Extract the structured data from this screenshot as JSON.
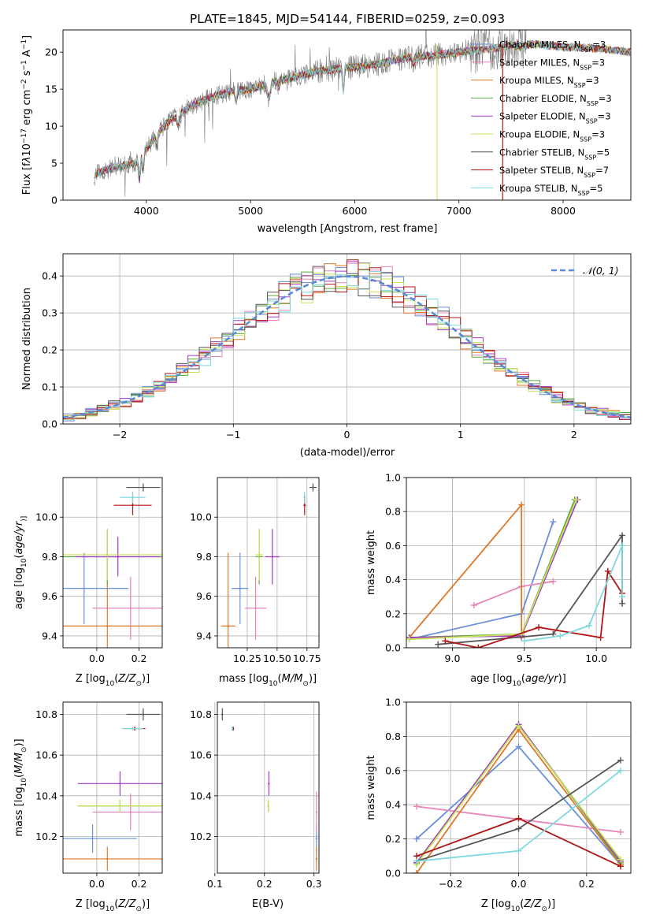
{
  "title": "PLATE=1845, MJD=54144, FIBERID=0259, z=0.093",
  "colors": {
    "chabrier_miles": "#6a8fd9",
    "salpeter_miles": "#e885b8",
    "kroupa_miles": "#e0782a",
    "chabrier_elodie": "#5fa844",
    "salpeter_elodie": "#a23cc8",
    "kroupa_elodie": "#c8e35a",
    "chabrier_stelib": "#555555",
    "salpeter_stelib": "#b01515",
    "kroupa_stelib": "#7fd8de",
    "normal": "#5b8bd6",
    "grid": "#b0b0b0"
  },
  "chart_data": [
    {
      "type": "line",
      "id": "spectrum",
      "title": "PLATE=1845, MJD=54144, FIBERID=0259, z=0.093",
      "xlabel": "wavelength [Angstrom, rest frame]",
      "ylabel_parts": [
        "Flux [f",
        "λ",
        "10",
        "−17",
        " erg cm",
        "−2",
        " s",
        "−1",
        " A",
        "−1",
        "]"
      ],
      "xlim": [
        3200,
        8650
      ],
      "ylim": [
        0,
        23
      ],
      "xticks": [
        4000,
        5000,
        6000,
        7000,
        8000
      ],
      "yticks": [
        0,
        5,
        10,
        15,
        20
      ],
      "grid": false,
      "legend_position": "top-right",
      "series": [
        {
          "name": "Chabrier MILES",
          "nssp": "3"
        },
        {
          "name": "Salpeter MILES",
          "nssp": "3"
        },
        {
          "name": "Kroupa MILES",
          "nssp": "3"
        },
        {
          "name": "Chabrier ELODIE",
          "nssp": "3"
        },
        {
          "name": "Salpeter ELODIE",
          "nssp": "3"
        },
        {
          "name": "Kroupa ELODIE",
          "nssp": "3"
        },
        {
          "name": "Chabrier STELIB",
          "nssp": "5"
        },
        {
          "name": "Salpeter STELIB",
          "nssp": "7"
        },
        {
          "name": "Kroupa STELIB",
          "nssp": "5"
        }
      ],
      "continuum": [
        [
          3500,
          3.5
        ],
        [
          3700,
          4.5
        ],
        [
          3900,
          5.0
        ],
        [
          4000,
          7.0
        ],
        [
          4200,
          10.5
        ],
        [
          4400,
          12.5
        ],
        [
          4600,
          13.8
        ],
        [
          4800,
          14.6
        ],
        [
          5000,
          15.0
        ],
        [
          5200,
          16.0
        ],
        [
          5400,
          16.5
        ],
        [
          5600,
          17.3
        ],
        [
          5800,
          17.7
        ],
        [
          6000,
          18.0
        ],
        [
          6200,
          18.3
        ],
        [
          6400,
          19.0
        ],
        [
          6600,
          19.4
        ],
        [
          6800,
          19.6
        ],
        [
          7000,
          20.0
        ],
        [
          7200,
          20.3
        ],
        [
          7400,
          20.6
        ],
        [
          7600,
          21.2
        ],
        [
          7800,
          21.0
        ],
        [
          8000,
          20.7
        ],
        [
          8200,
          20.6
        ],
        [
          8400,
          20.4
        ],
        [
          8650,
          20.0
        ]
      ]
    },
    {
      "type": "line",
      "id": "residuals",
      "xlabel": "(data-model)/error",
      "ylabel": "Normed distribution",
      "xlim": [
        -2.5,
        2.5
      ],
      "ylim": [
        0,
        0.46
      ],
      "xticks": [
        -2,
        -1,
        0,
        1,
        2
      ],
      "yticks": [
        0.0,
        0.1,
        0.2,
        0.3,
        0.4
      ],
      "grid": true,
      "legend_position": "top-right",
      "legend_label": "𝒩(0, 1)",
      "bin_width": 0.1,
      "reference_curve": "normal(0,1)"
    },
    {
      "type": "scatter",
      "id": "age_vs_Z",
      "xlabel_parts": [
        "Z [log",
        "10",
        "(",
        "Z/Z",
        "⊙",
        ")]"
      ],
      "ylabel_parts": [
        "age  [log",
        "10",
        "(",
        "age/yr",
        ")]"
      ],
      "xlim": [
        -0.16,
        0.31
      ],
      "ylim": [
        9.34,
        10.2
      ],
      "xticks": [
        0.0,
        0.2
      ],
      "yticks": [
        9.4,
        9.6,
        9.8,
        10.0
      ],
      "grid": true,
      "points": [
        {
          "model": "chabrier_miles",
          "x": -0.06,
          "xerr": 0.21,
          "y": 9.64,
          "yerr": 0.18
        },
        {
          "model": "salpeter_miles",
          "x": 0.16,
          "xerr": 0.18,
          "y": 9.54,
          "yerr": 0.16
        },
        {
          "model": "kroupa_miles",
          "x": 0.05,
          "xerr": 0.26,
          "y": 9.45,
          "yerr": 0.36
        },
        {
          "model": "chabrier_elodie",
          "x": 0.05,
          "xerr": 0.26,
          "y": 9.8,
          "yerr": 0.14
        },
        {
          "model": "salpeter_elodie",
          "x": 0.1,
          "xerr": 0.2,
          "y": 9.8,
          "yerr": 0.1
        },
        {
          "model": "kroupa_elodie",
          "x": 0.05,
          "xerr": 0.26,
          "y": 9.81,
          "yerr": 0.13
        },
        {
          "model": "chabrier_stelib",
          "x": 0.22,
          "xerr": 0.08,
          "y": 10.15,
          "yerr": 0.02
        },
        {
          "model": "salpeter_stelib",
          "x": 0.17,
          "xerr": 0.09,
          "y": 10.06,
          "yerr": 0.05
        },
        {
          "model": "kroupa_stelib",
          "x": 0.17,
          "xerr": 0.06,
          "y": 10.1,
          "yerr": 0.03
        }
      ]
    },
    {
      "type": "scatter",
      "id": "age_vs_mass",
      "xlabel_parts": [
        "mass [log",
        "10",
        "(",
        "M/M",
        "⊙",
        ")]"
      ],
      "xlim": [
        10.0,
        10.85
      ],
      "ylim": [
        9.34,
        10.2
      ],
      "xticks": [
        10.25,
        10.5,
        10.75
      ],
      "xticklabels": [
        "10.25",
        "10.50",
        "10.75"
      ],
      "yticks": [
        9.4,
        9.6,
        9.8,
        10.0
      ],
      "grid": true,
      "points": [
        {
          "model": "chabrier_miles",
          "x": 10.19,
          "xerr": 0.07,
          "y": 9.64,
          "yerr": 0.18
        },
        {
          "model": "salpeter_miles",
          "x": 10.32,
          "xerr": 0.09,
          "y": 9.54,
          "yerr": 0.16
        },
        {
          "model": "kroupa_miles",
          "x": 10.09,
          "xerr": 0.06,
          "y": 9.45,
          "yerr": 0.37
        },
        {
          "model": "chabrier_elodie",
          "x": 10.35,
          "xerr": 0.03,
          "y": 9.8,
          "yerr": 0.14
        },
        {
          "model": "salpeter_elodie",
          "x": 10.46,
          "xerr": 0.06,
          "y": 9.8,
          "yerr": 0.14
        },
        {
          "model": "kroupa_elodie",
          "x": 10.35,
          "xerr": 0.03,
          "y": 9.81,
          "yerr": 0.13
        },
        {
          "model": "chabrier_stelib",
          "x": 10.8,
          "xerr": 0.03,
          "y": 10.15,
          "yerr": 0.02
        },
        {
          "model": "salpeter_stelib",
          "x": 10.73,
          "xerr": 0.01,
          "y": 10.06,
          "yerr": 0.05
        },
        {
          "model": "kroupa_stelib",
          "x": 10.73,
          "xerr": 0.01,
          "y": 10.1,
          "yerr": 0.03
        }
      ]
    },
    {
      "type": "line",
      "id": "mass_weight_vs_age",
      "xlabel_parts": [
        "age  [log",
        "10",
        "(",
        "age/yr",
        ")]"
      ],
      "ylabel": "mass weight",
      "xlim": [
        8.68,
        10.24
      ],
      "ylim": [
        0,
        1
      ],
      "xticks": [
        9.0,
        9.5,
        10.0
      ],
      "yticks": [
        0.0,
        0.2,
        0.4,
        0.6,
        0.8,
        1.0
      ],
      "grid": true,
      "series": [
        {
          "model": "chabrier_miles",
          "x": [
            8.7,
            9.48,
            9.7
          ],
          "y": [
            0.05,
            0.2,
            0.74
          ]
        },
        {
          "model": "salpeter_miles",
          "x": [
            9.15,
            9.48,
            9.7
          ],
          "y": [
            0.25,
            0.36,
            0.39
          ]
        },
        {
          "model": "kroupa_miles",
          "x": [
            8.7,
            9.48,
            9.48
          ],
          "y": [
            0.06,
            0.84,
            0.06
          ]
        },
        {
          "model": "chabrier_elodie",
          "x": [
            8.7,
            9.48,
            9.85
          ],
          "y": [
            0.06,
            0.08,
            0.87
          ]
        },
        {
          "model": "salpeter_elodie",
          "x": [
            8.7,
            9.48,
            9.87
          ],
          "y": [
            0.06,
            0.07,
            0.87
          ]
        },
        {
          "model": "kroupa_elodie",
          "x": [
            8.7,
            9.48,
            9.86
          ],
          "y": [
            0.05,
            0.08,
            0.87
          ]
        },
        {
          "model": "chabrier_stelib",
          "x": [
            8.9,
            9.7,
            10.18,
            10.18
          ],
          "y": [
            0.02,
            0.08,
            0.66,
            0.26
          ]
        },
        {
          "model": "salpeter_stelib",
          "x": [
            8.95,
            9.18,
            9.6,
            10.03,
            10.08,
            10.18
          ],
          "y": [
            0.04,
            0.0,
            0.12,
            0.06,
            0.45,
            0.32
          ]
        },
        {
          "model": "kroupa_stelib",
          "x": [
            9.5,
            9.75,
            9.95,
            10.18,
            10.18
          ],
          "y": [
            0.04,
            0.07,
            0.13,
            0.6,
            0.3
          ]
        }
      ]
    },
    {
      "type": "scatter",
      "id": "mass_vs_Z",
      "xlabel_parts": [
        "Z [log",
        "10",
        "(",
        "Z/Z",
        "⊙",
        ")]"
      ],
      "ylabel_parts": [
        "mass [log",
        "10",
        "(",
        "M/M",
        "⊙",
        ")]"
      ],
      "xlim": [
        -0.16,
        0.31
      ],
      "ylim": [
        10.02,
        10.86
      ],
      "xticks": [
        0.0,
        0.2
      ],
      "yticks": [
        10.2,
        10.4,
        10.6,
        10.8
      ],
      "grid": true,
      "points": [
        {
          "model": "chabrier_miles",
          "x": -0.02,
          "xerr": 0.21,
          "y": 10.19,
          "yerr": 0.07
        },
        {
          "model": "salpeter_miles",
          "x": 0.16,
          "xerr": 0.18,
          "y": 10.32,
          "yerr": 0.09
        },
        {
          "model": "kroupa_miles",
          "x": 0.05,
          "xerr": 0.26,
          "y": 10.09,
          "yerr": 0.06
        },
        {
          "model": "chabrier_elodie",
          "x": 0.11,
          "xerr": 0.2,
          "y": 10.35,
          "yerr": 0.03
        },
        {
          "model": "salpeter_elodie",
          "x": 0.11,
          "xerr": 0.2,
          "y": 10.46,
          "yerr": 0.06
        },
        {
          "model": "kroupa_elodie",
          "x": 0.11,
          "xerr": 0.2,
          "y": 10.35,
          "yerr": 0.03
        },
        {
          "model": "chabrier_stelib",
          "x": 0.22,
          "xerr": 0.08,
          "y": 10.8,
          "yerr": 0.03
        },
        {
          "model": "salpeter_stelib",
          "x": 0.18,
          "xerr": 0.05,
          "y": 10.73,
          "yerr": 0.01
        },
        {
          "model": "kroupa_stelib",
          "x": 0.17,
          "xerr": 0.05,
          "y": 10.73,
          "yerr": 0.01
        }
      ]
    },
    {
      "type": "scatter",
      "id": "mass_vs_ebv",
      "xlabel": "E(B-V)",
      "xlim": [
        0.105,
        0.31
      ],
      "ylim": [
        10.02,
        10.86
      ],
      "xticks": [
        0.1,
        0.2,
        0.3
      ],
      "yticks": [
        10.2,
        10.4,
        10.6,
        10.8
      ],
      "grid": true,
      "points": [
        {
          "model": "chabrier_miles",
          "x": 0.305,
          "y": 10.19,
          "yerr": 0.07
        },
        {
          "model": "salpeter_miles",
          "x": 0.305,
          "y": 10.32,
          "yerr": 0.1
        },
        {
          "model": "kroupa_miles",
          "x": 0.305,
          "y": 10.09,
          "yerr": 0.06
        },
        {
          "model": "chabrier_elodie",
          "x": 0.208,
          "y": 10.35,
          "yerr": 0.03
        },
        {
          "model": "salpeter_elodie",
          "x": 0.209,
          "y": 10.46,
          "yerr": 0.06
        },
        {
          "model": "kroupa_elodie",
          "x": 0.208,
          "y": 10.35,
          "yerr": 0.03
        },
        {
          "model": "chabrier_stelib",
          "x": 0.115,
          "y": 10.8,
          "yerr": 0.03
        },
        {
          "model": "salpeter_stelib",
          "x": 0.137,
          "y": 10.73,
          "yerr": 0.01
        },
        {
          "model": "kroupa_stelib",
          "x": 0.135,
          "y": 10.73,
          "yerr": 0.01
        }
      ]
    },
    {
      "type": "line",
      "id": "mass_weight_vs_Z",
      "xlabel_parts": [
        "Z [log",
        "10",
        "(",
        "Z/Z",
        "⊙",
        ")]"
      ],
      "ylabel": "mass weight",
      "xlim": [
        -0.33,
        0.33
      ],
      "ylim": [
        0,
        1
      ],
      "xticks": [
        -0.2,
        0.0,
        0.2
      ],
      "yticks": [
        0.0,
        0.2,
        0.4,
        0.6,
        0.8,
        1.0
      ],
      "grid": true,
      "series": [
        {
          "model": "chabrier_miles",
          "x": [
            -0.3,
            0.0,
            0.3
          ],
          "y": [
            0.2,
            0.74,
            0.05
          ]
        },
        {
          "model": "salpeter_miles",
          "x": [
            -0.3,
            0.3
          ],
          "y": [
            0.39,
            0.24
          ]
        },
        {
          "model": "kroupa_miles",
          "x": [
            -0.3,
            0.0,
            0.3
          ],
          "y": [
            0.0,
            0.84,
            0.05
          ]
        },
        {
          "model": "chabrier_elodie",
          "x": [
            -0.3,
            0.0,
            0.3
          ],
          "y": [
            0.06,
            0.87,
            0.06
          ]
        },
        {
          "model": "salpeter_elodie",
          "x": [
            -0.3,
            0.0,
            0.3
          ],
          "y": [
            0.06,
            0.87,
            0.07
          ]
        },
        {
          "model": "kroupa_elodie",
          "x": [
            -0.3,
            0.0,
            0.3
          ],
          "y": [
            0.05,
            0.86,
            0.08
          ]
        },
        {
          "model": "chabrier_stelib",
          "x": [
            -0.3,
            0.0,
            0.3
          ],
          "y": [
            0.07,
            0.26,
            0.66
          ]
        },
        {
          "model": "salpeter_stelib",
          "x": [
            -0.3,
            0.0,
            0.3
          ],
          "y": [
            0.1,
            0.32,
            0.04
          ]
        },
        {
          "model": "kroupa_stelib",
          "x": [
            -0.3,
            0.0,
            0.3
          ],
          "y": [
            0.07,
            0.13,
            0.6
          ]
        }
      ]
    }
  ]
}
